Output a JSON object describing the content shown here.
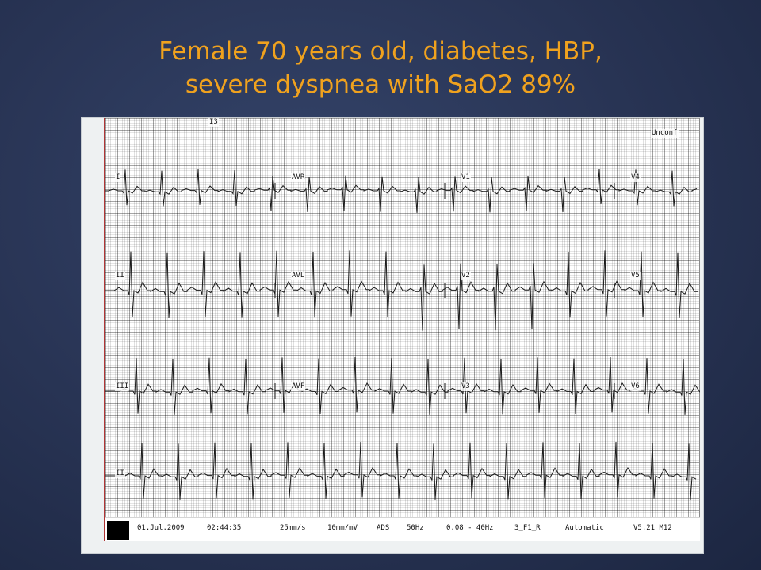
{
  "slide": {
    "title_line1": "Female 70 years old, diabetes, HBP,",
    "title_line2": "severe dyspnea with SaO2 89%"
  },
  "ecg": {
    "top_marker": "I3",
    "status": "Unconf",
    "leads": {
      "I": "I",
      "II": "II",
      "III": "III",
      "rhythm": "II",
      "aVR": "AVR",
      "aVL": "AVL",
      "aVF": "AVF",
      "V1": "V1",
      "V2": "V2",
      "V3": "V3",
      "V4": "V4",
      "V5": "V5",
      "V6": "V6"
    },
    "footer": {
      "date": "01.Jul.2009",
      "time": "02:44:35",
      "speed": "25mm/s",
      "gain": "10mm/mV",
      "ads": "ADS",
      "mains": "50Hz",
      "bandwidth": "0.08 - 40Hz",
      "format": "3_F1_R",
      "mode": "Automatic",
      "version": "V5.21 M12"
    },
    "colors": {
      "trace": "#1a1a1a",
      "left_border": "#b03535",
      "title": "#f0a21e"
    }
  }
}
